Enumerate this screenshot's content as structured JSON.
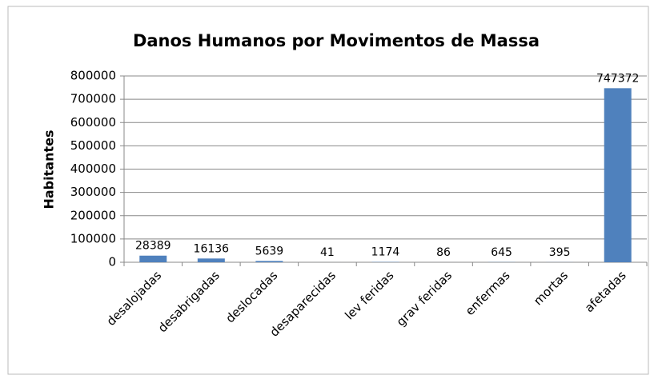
{
  "chart_data": {
    "type": "bar",
    "title": "Danos Humanos por Movimentos de Massa",
    "y_label": "Habitantes",
    "categories": [
      "desalojadas",
      "desabrigadas",
      "deslocadas",
      "desaparecidas",
      "lev feridas",
      "grav feridas",
      "enfermas",
      "mortas",
      "afetadas"
    ],
    "values": [
      28389,
      16136,
      5639,
      41,
      1174,
      86,
      645,
      395,
      747372
    ],
    "color": "#4f81bd",
    "ylim": [
      0,
      800000
    ],
    "yticks": [
      0,
      100000,
      200000,
      300000,
      400000,
      500000,
      600000,
      700000,
      800000
    ],
    "grid": true
  }
}
